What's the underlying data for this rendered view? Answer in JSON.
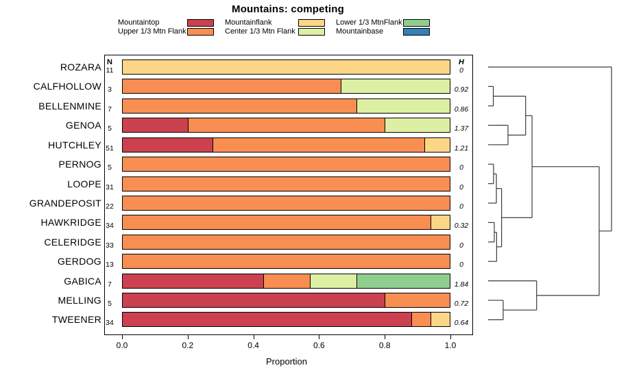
{
  "title": "Mountains: competing",
  "chart_data": {
    "type": "bar",
    "orientation": "horizontal-stacked",
    "xlabel": "Proportion",
    "xlim": [
      0,
      1
    ],
    "xticks": [
      "0.0",
      "0.2",
      "0.4",
      "0.6",
      "0.8",
      "1.0"
    ],
    "n_header": "N",
    "h_header": "H",
    "legend_position": "top",
    "grid": false,
    "categories": [
      {
        "name": "Mountaintop",
        "color": "#cc4150"
      },
      {
        "name": "Upper 1/3 Mtn Flank",
        "color": "#f98e52"
      },
      {
        "name": "Mountainflank",
        "color": "#fbd687"
      },
      {
        "name": "Center 1/3 Mtn Flank",
        "color": "#ddefa3"
      },
      {
        "name": "Lower 1/3 MtnFlank",
        "color": "#90ce90"
      },
      {
        "name": "Mountainbase",
        "color": "#3381b5"
      }
    ],
    "rows": [
      {
        "name": "ROZARA",
        "n": 11,
        "h": "0",
        "segments": [
          {
            "category": "Mountainflank",
            "value": 1.0
          }
        ]
      },
      {
        "name": "CALFHOLLOW",
        "n": 3,
        "h": "0.92",
        "segments": [
          {
            "category": "Upper 1/3 Mtn Flank",
            "value": 0.667
          },
          {
            "category": "Center 1/3 Mtn Flank",
            "value": 0.333
          }
        ]
      },
      {
        "name": "BELLENMINE",
        "n": 7,
        "h": "0.86",
        "segments": [
          {
            "category": "Upper 1/3 Mtn Flank",
            "value": 0.714
          },
          {
            "category": "Center 1/3 Mtn Flank",
            "value": 0.286
          }
        ]
      },
      {
        "name": "GENOA",
        "n": 5,
        "h": "1.37",
        "segments": [
          {
            "category": "Mountaintop",
            "value": 0.2
          },
          {
            "category": "Upper 1/3 Mtn Flank",
            "value": 0.6
          },
          {
            "category": "Center 1/3 Mtn Flank",
            "value": 0.2
          }
        ]
      },
      {
        "name": "HUTCHLEY",
        "n": 51,
        "h": "1.21",
        "segments": [
          {
            "category": "Mountaintop",
            "value": 0.275
          },
          {
            "category": "Upper 1/3 Mtn Flank",
            "value": 0.647
          },
          {
            "category": "Mountainflank",
            "value": 0.078
          }
        ]
      },
      {
        "name": "PERNOG",
        "n": 5,
        "h": "0",
        "segments": [
          {
            "category": "Upper 1/3 Mtn Flank",
            "value": 1.0
          }
        ]
      },
      {
        "name": "LOOPE",
        "n": 31,
        "h": "0",
        "segments": [
          {
            "category": "Upper 1/3 Mtn Flank",
            "value": 1.0
          }
        ]
      },
      {
        "name": "GRANDEPOSIT",
        "n": 22,
        "h": "0",
        "segments": [
          {
            "category": "Upper 1/3 Mtn Flank",
            "value": 1.0
          }
        ]
      },
      {
        "name": "HAWKRIDGE",
        "n": 34,
        "h": "0.32",
        "segments": [
          {
            "category": "Upper 1/3 Mtn Flank",
            "value": 0.941
          },
          {
            "category": "Mountainflank",
            "value": 0.059
          }
        ]
      },
      {
        "name": "CELERIDGE",
        "n": 33,
        "h": "0",
        "segments": [
          {
            "category": "Upper 1/3 Mtn Flank",
            "value": 1.0
          }
        ]
      },
      {
        "name": "GERDOG",
        "n": 13,
        "h": "0",
        "segments": [
          {
            "category": "Upper 1/3 Mtn Flank",
            "value": 1.0
          }
        ]
      },
      {
        "name": "GABICA",
        "n": 7,
        "h": "1.84",
        "segments": [
          {
            "category": "Mountaintop",
            "value": 0.429
          },
          {
            "category": "Upper 1/3 Mtn Flank",
            "value": 0.143
          },
          {
            "category": "Center 1/3 Mtn Flank",
            "value": 0.143
          },
          {
            "category": "Lower 1/3 MtnFlank",
            "value": 0.285
          }
        ]
      },
      {
        "name": "MELLING",
        "n": 5,
        "h": "0.72",
        "segments": [
          {
            "category": "Mountaintop",
            "value": 0.8
          },
          {
            "category": "Upper 1/3 Mtn Flank",
            "value": 0.2
          }
        ]
      },
      {
        "name": "TWEENER",
        "n": 34,
        "h": "0.64",
        "segments": [
          {
            "category": "Mountaintop",
            "value": 0.882
          },
          {
            "category": "Upper 1/3 Mtn Flank",
            "value": 0.059
          },
          {
            "category": "Mountainflank",
            "value": 0.059
          }
        ]
      }
    ],
    "dendrogram": {
      "height": 1.0,
      "children": [
        {
          "leaf": "ROZARA"
        },
        {
          "height": 0.9,
          "children": [
            {
              "height": 0.356,
              "children": [
                {
                  "height": 0.304,
                  "children": [
                    {
                      "height": 0.042,
                      "children": [
                        {
                          "leaf": "CALFHOLLOW"
                        },
                        {
                          "leaf": "BELLENMINE"
                        }
                      ]
                    },
                    {
                      "height": 0.161,
                      "children": [
                        {
                          "leaf": "GENOA"
                        },
                        {
                          "leaf": "HUTCHLEY"
                        }
                      ]
                    }
                  ]
                },
                {
                  "height": 0.109,
                  "children": [
                    {
                      "height": 0.067,
                      "children": [
                        {
                          "height": 0.044,
                          "children": [
                            {
                              "leaf": "PERNOG"
                            },
                            {
                              "leaf": "LOOPE"
                            }
                          ]
                        },
                        {
                          "leaf": "GRANDEPOSIT"
                        }
                      ]
                    },
                    {
                      "height": 0.069,
                      "children": [
                        {
                          "height": 0.05,
                          "children": [
                            {
                              "leaf": "HAWKRIDGE"
                            },
                            {
                              "leaf": "CELERIDGE"
                            }
                          ]
                        },
                        {
                          "leaf": "GERDOG"
                        }
                      ]
                    }
                  ]
                }
              ]
            },
            {
              "height": 0.393,
              "children": [
                {
                  "leaf": "GABICA"
                },
                {
                  "height": 0.122,
                  "children": [
                    {
                      "leaf": "MELLING"
                    },
                    {
                      "leaf": "TWEENER"
                    }
                  ]
                }
              ]
            }
          ]
        }
      ]
    }
  }
}
